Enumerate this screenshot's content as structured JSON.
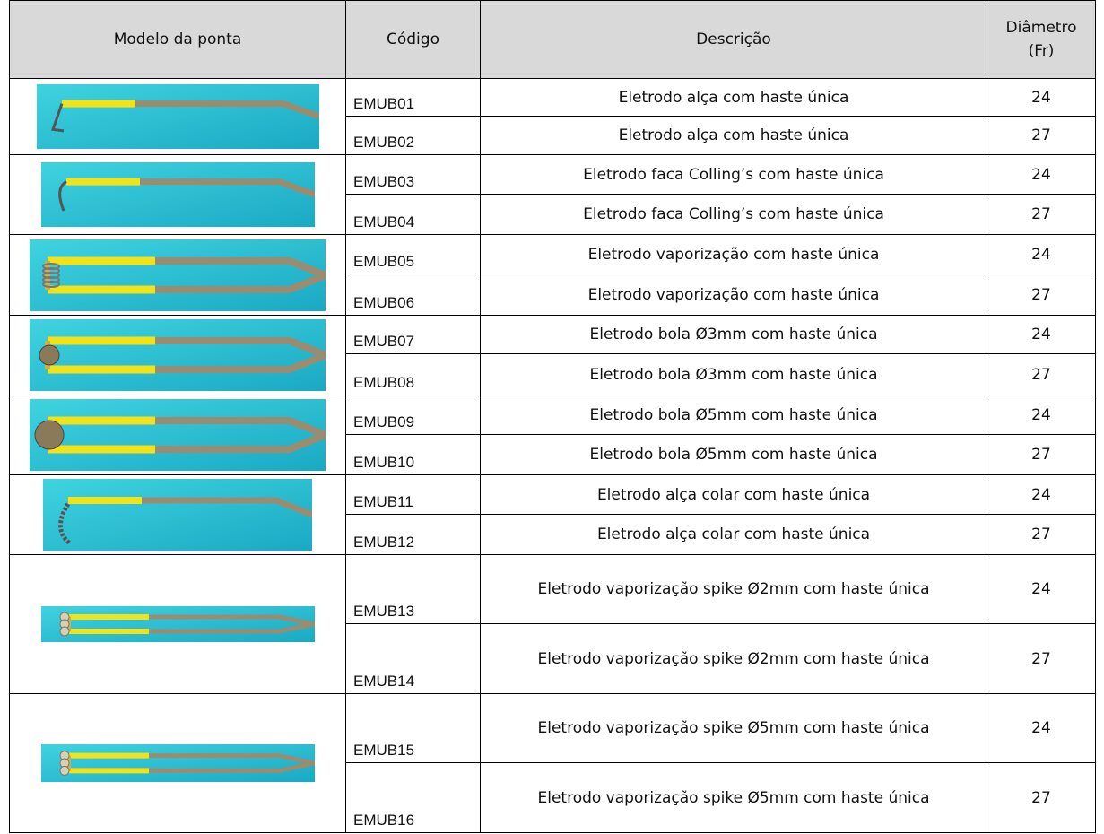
{
  "table": {
    "header": [
      "Modelo da ponta",
      "Código",
      "Descrição",
      "Diâmetro (Fr)"
    ],
    "groups": [
      {
        "rows": [
          {
            "code": "EMUB01",
            "description": "Eletrodo alça com haste única",
            "diameter": 24
          },
          {
            "code": "EMUB02",
            "description": "Eletrodo alça com haste única",
            "diameter": 27
          }
        ]
      },
      {
        "rows": [
          {
            "code": "EMUB03",
            "description": "Eletrodo faca Colling’s com haste única",
            "diameter": 24
          },
          {
            "code": "EMUB04",
            "description": "Eletrodo faca Colling’s com haste única",
            "diameter": 27
          }
        ]
      },
      {
        "rows": [
          {
            "code": "EMUB05",
            "description": "Eletrodo vaporização com haste única",
            "diameter": 24
          },
          {
            "code": "EMUB06",
            "description": "Eletrodo vaporização com haste única",
            "diameter": 27
          }
        ]
      },
      {
        "rows": [
          {
            "code": "EMUB07",
            "description": "Eletrodo bola Ø3mm com haste única",
            "diameter": 24
          },
          {
            "code": "EMUB08",
            "description": "Eletrodo bola Ø3mm com haste única",
            "diameter": 27
          }
        ]
      },
      {
        "rows": [
          {
            "code": "EMUB09",
            "description": "Eletrodo bola Ø5mm com haste única",
            "diameter": 24
          },
          {
            "code": "EMUB10",
            "description": "Eletrodo bola Ø5mm com haste única",
            "diameter": 27
          }
        ]
      },
      {
        "rows": [
          {
            "code": "EMUB11",
            "description": "Eletrodo alça colar com haste única",
            "diameter": 24
          },
          {
            "code": "EMUB12",
            "description": "Eletrodo alça colar com haste única",
            "diameter": 27
          }
        ]
      },
      {
        "rows": [
          {
            "code": "EMUB13",
            "description": "Eletrodo vaporização spike Ø2mm com haste única",
            "diameter": 24
          },
          {
            "code": "EMUB14",
            "description": "Eletrodo vaporização spike Ø2mm com haste única",
            "diameter": 27
          }
        ]
      },
      {
        "rows": [
          {
            "code": "EMUB15",
            "description": "Eletrodo vaporização spike Ø5mm com haste única",
            "diameter": 24
          },
          {
            "code": "EMUB16",
            "description": "Eletrodo vaporização spike Ø5mm com haste única",
            "diameter": 27
          }
        ]
      }
    ]
  }
}
